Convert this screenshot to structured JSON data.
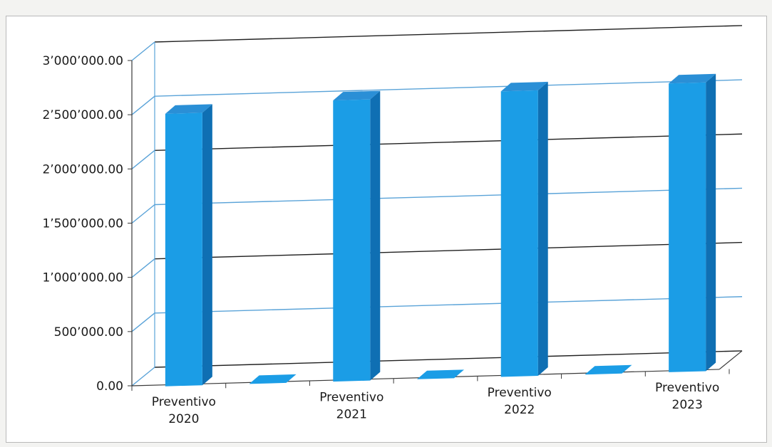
{
  "chart_data": {
    "type": "bar",
    "style": "3d-column",
    "title": "",
    "xlabel": "",
    "ylabel": "",
    "categories": [
      "Preventivo 2020",
      "",
      "Preventivo 2021",
      "",
      "Preventivo 2022",
      "",
      "Preventivo 2023"
    ],
    "category_label_lines": [
      [
        "Preventivo",
        "2020"
      ],
      [],
      [
        "Preventivo",
        "2021"
      ],
      [],
      [
        "Preventivo",
        "2022"
      ],
      [],
      [
        "Preventivo",
        "2023"
      ]
    ],
    "series": [
      {
        "values": [
          2500000,
          0,
          2580000,
          0,
          2620000,
          0,
          2650000
        ]
      }
    ],
    "ylim": [
      0,
      3000000
    ],
    "y_ticks": [
      0,
      500000,
      1000000,
      1500000,
      2000000,
      2500000,
      3000000
    ],
    "y_tick_labels": [
      "0.00",
      "500’000.00",
      "1’000’000.00",
      "1’500’000.00",
      "2’000’000.00",
      "2’500’000.00",
      "3’000’000.00"
    ],
    "grid": true,
    "legend": "none",
    "colors": {
      "bar_front": "#1b9de6",
      "bar_side": "#0f6fb3",
      "bar_top": "#2a8fd6",
      "gridline": "#202020",
      "gridline_secondary": "#5aa3d8"
    }
  }
}
